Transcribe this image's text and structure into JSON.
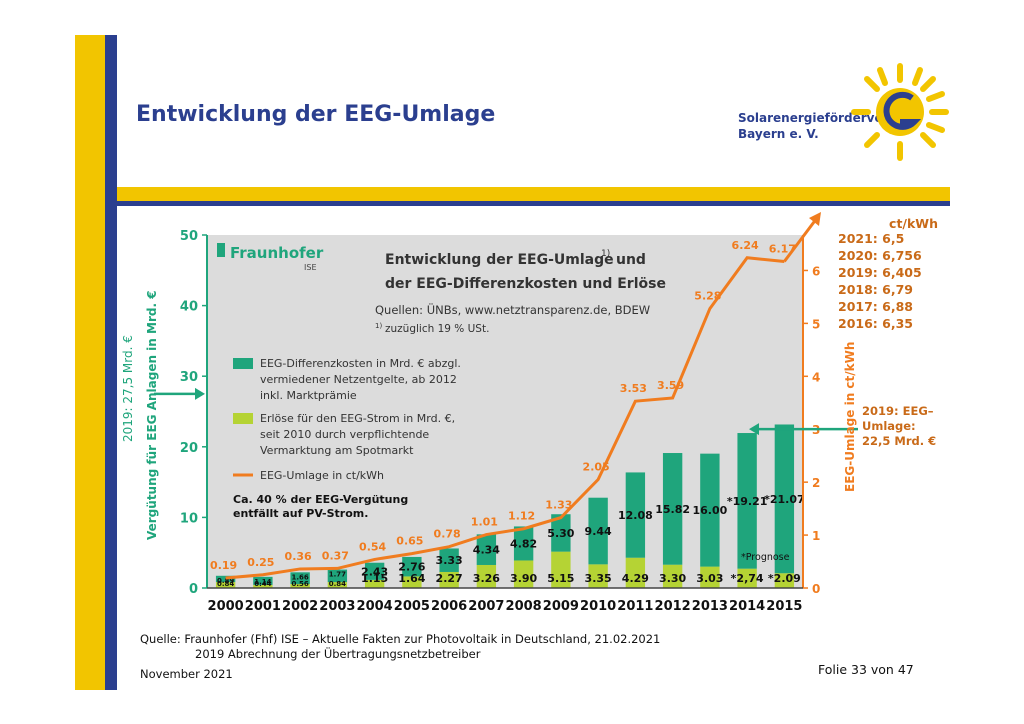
{
  "slide": {
    "title": "Entwicklung der EEG-Umlage",
    "logo": "Solarenergieförderverein Bayern e. V.",
    "logo_line1": "Solarenergieförderverein",
    "logo_line2": "Bayern e. V.",
    "source_label": "Quelle:",
    "source_line1": "Fraunhofer (Fhf) ISE – Aktuelle Fakten zur Photovoltaik in Deutschland, 21.02.2021",
    "source_line2": "2019 Abrechnung der Übertragungsnetzbetreiber",
    "date": "November 2021",
    "page": "Folie 33 von 47"
  },
  "colors": {
    "yellow": "#f2c500",
    "navy": "#2b3f8f",
    "teal": "#1fa57c",
    "lime": "#b5d334",
    "orange": "#f07c1f",
    "brown_orange": "#c96a18",
    "plot_bg": "#dcdcdc"
  },
  "chart_data": {
    "type": "bar",
    "title": "Entwicklung der EEG-Umlage und der EEG-Differenzkosten und Erlöse",
    "title_line1": "Entwicklung der EEG-Umlage",
    "title_footnote": "1)",
    "title_line2_prefix": "und",
    "title_line2": "der EEG-Differenzkosten und Erlöse",
    "brand": "Fraunhofer",
    "brand_sub": "ISE",
    "sources": "Quellen: ÜNBs, www.netztransparenz.de, BDEW",
    "footnote": "zuzüglich 19 % USt.",
    "footnote_mark": "1)",
    "ylabel_left": "Vergütung für EEG Anlagen in Mrd. €",
    "ylabel_right": "EEG-Umlage in ct/kWh",
    "ylim_left": [
      0,
      50
    ],
    "ylim_right": [
      0,
      6.67
    ],
    "yticks_left": [
      0,
      10,
      20,
      30,
      40,
      50
    ],
    "yticks_right": [
      0,
      1,
      2,
      3,
      4,
      5,
      6
    ],
    "grid": false,
    "categories": [
      "2000",
      "2001",
      "2002",
      "2003",
      "2004",
      "2005",
      "2006",
      "2007",
      "2008",
      "2009",
      "2010",
      "2011",
      "2012",
      "2013",
      "2014",
      "2015"
    ],
    "series": [
      {
        "name": "EEG-Differenzkosten in Mrd. € abzgl. vermiedener Netzentgelte, ab 2012 inkl. Marktprämie",
        "legend_lines": [
          "EEG-Differenzkosten in Mrd. € abzgl.",
          "vermiedener Netzentgelte, ab 2012",
          "inkl. Marktprämie"
        ],
        "values": [
          0.89,
          1.14,
          1.66,
          1.77,
          2.43,
          2.76,
          3.33,
          4.34,
          4.82,
          5.3,
          9.44,
          12.08,
          15.82,
          16.0,
          19.21,
          21.07
        ],
        "labels": [
          "0.89",
          "1.14",
          "1.66",
          "1.77",
          "2.43",
          "2.76",
          "3.33",
          "4.34",
          "4.82",
          "5.30",
          "9.44",
          "12.08",
          "15.82",
          "16.00",
          "*19.21",
          "*21.07"
        ]
      },
      {
        "name": "Erlöse für den EEG-Strom in Mrd. €, seit 2010 durch verpflichtende Vermarktung am Spotmarkt",
        "legend_lines": [
          "Erlöse für den EEG-Strom in Mrd. €,",
          "seit 2010 durch verpflichtende",
          "Vermarktung am Spotmarkt"
        ],
        "values": [
          0.84,
          0.44,
          0.56,
          0.84,
          1.15,
          1.64,
          2.27,
          3.26,
          3.9,
          5.15,
          3.35,
          4.29,
          3.3,
          3.03,
          2.74,
          2.09
        ],
        "labels": [
          "0.84",
          "0.44",
          "0.56",
          "0.84",
          "1.15",
          "1.64",
          "2.27",
          "3.26",
          "3.90",
          "5.15",
          "3.35",
          "4.29",
          "3.30",
          "3.03",
          "*2,74",
          "*2.09"
        ]
      },
      {
        "name": "EEG-Umlage in ct/kWh",
        "values": [
          0.19,
          0.25,
          0.36,
          0.37,
          0.54,
          0.65,
          0.78,
          1.01,
          1.12,
          1.33,
          2.05,
          3.53,
          3.59,
          5.28,
          6.24,
          6.17
        ],
        "labels": [
          "0.19",
          "0.25",
          "0.36",
          "0.37",
          "0.54",
          "0.65",
          "0.78",
          "1.01",
          "1.12",
          "1.33",
          "2.05",
          "3.53",
          "3.59",
          "5.28",
          "6.24",
          "6.17"
        ]
      }
    ],
    "annotations": {
      "pv_note_line1": "Ca. 40 % der EEG-Vergütung",
      "pv_note_line2": "entfällt auf PV-Strom.",
      "prognose": "*Prognose",
      "left_arrow_label": "2019: 27,5 Mrd. €",
      "left_arrow_value": 27.5,
      "right_unit": "ct/kWh",
      "right_list": [
        "2021: 6,5",
        "2020: 6,756",
        "2019: 6,405",
        "2018: 6,79",
        "2017: 6,88",
        "2016: 6,35"
      ],
      "right_note_lines": [
        "2019: EEG–",
        "Umlage:",
        "22,5 Mrd. €"
      ],
      "right_note_value": 22.5
    }
  }
}
